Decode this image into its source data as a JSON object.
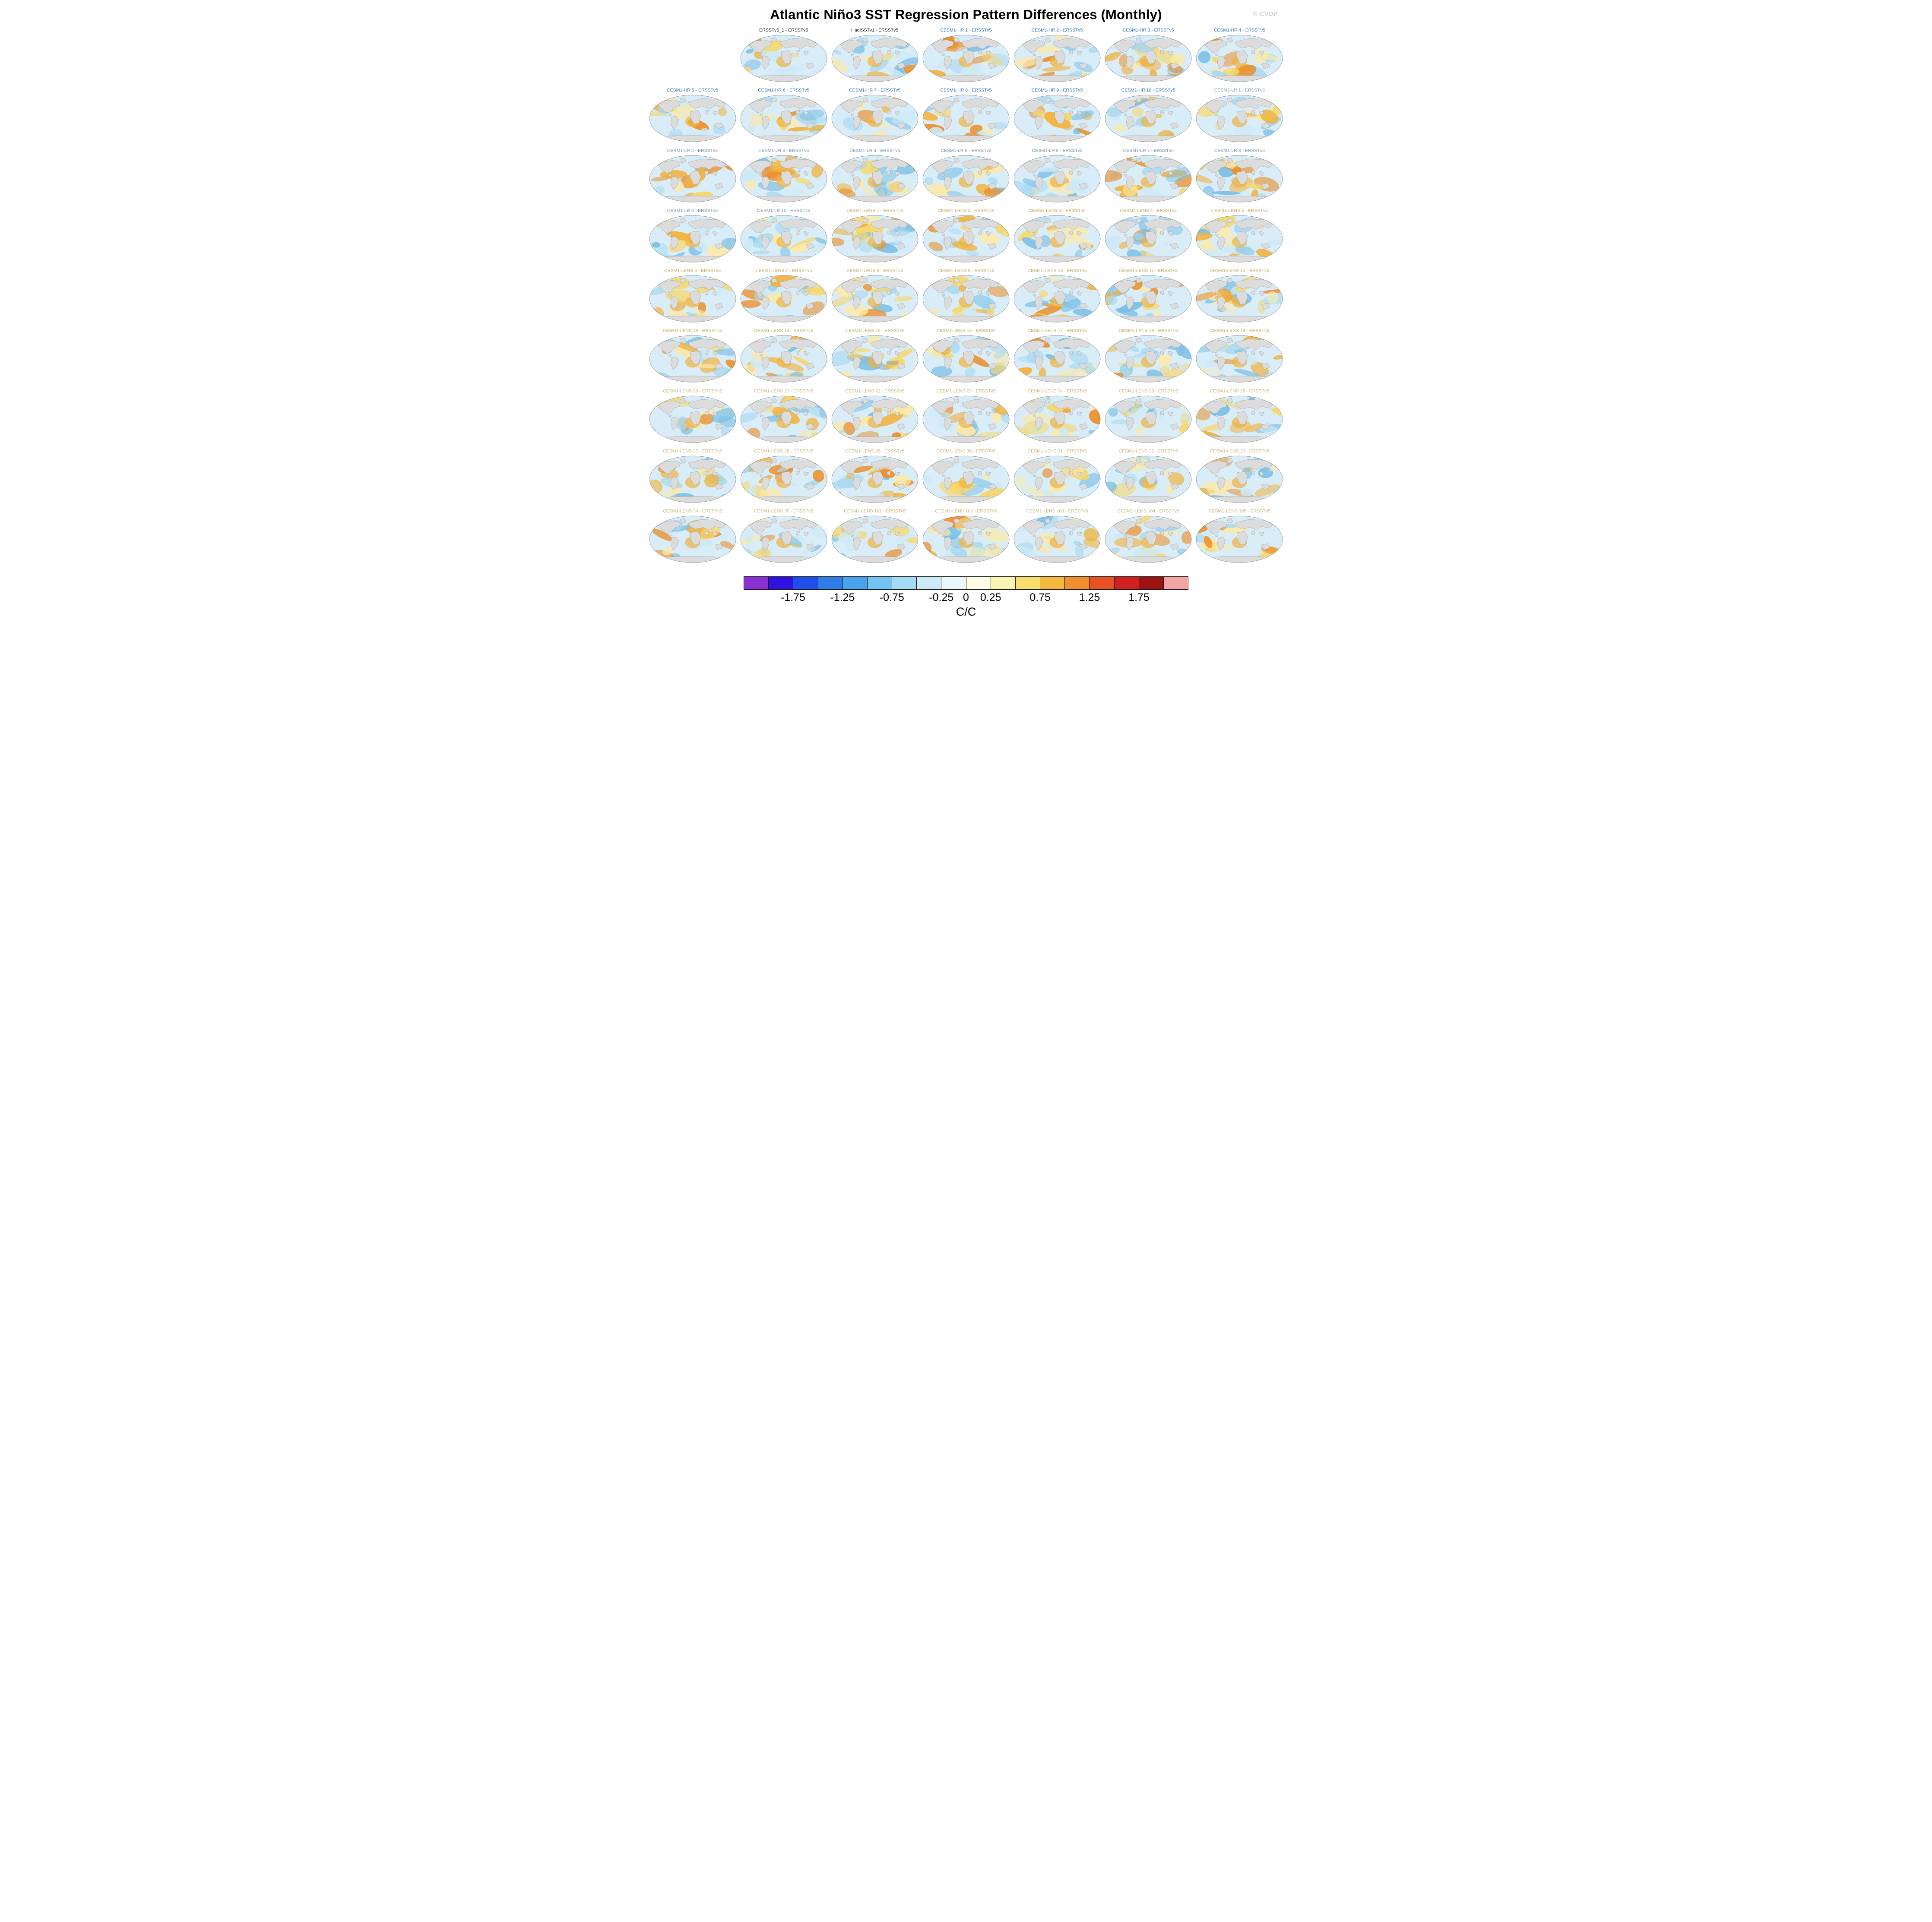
{
  "title": "Atlantic Niño3 SST Regression Pattern Differences (Monthly)",
  "watermark": "© CVDP",
  "group_colors": {
    "obs": "#000000",
    "hr": "#1c6bb0",
    "lr": "#7d97ac",
    "lens": "#c5ae6b"
  },
  "map_style": {
    "ocean": "#d8edf8",
    "land": "#dcdcdc",
    "land_outline": "#9a9a9a",
    "globe_outline": "#777777",
    "warm_palette": [
      "#fce9a8",
      "#f8d76a",
      "#f2b23c",
      "#ec8f2a"
    ],
    "cool_palette": [
      "#a9d8f0",
      "#7cc0e6",
      "#cde9f6"
    ]
  },
  "chart_data": {
    "type": "heatmap",
    "subtype": "global-map-grid",
    "title": "Atlantic Niño3 SST Regression Pattern Differences (Monthly)",
    "grid": {
      "rows": 9,
      "columns": 7,
      "leading_blank_cells": 1
    },
    "panels": [
      {
        "label": "ERSSTv5_1 - ERSSTv5",
        "group": "obs"
      },
      {
        "label": "HadISSTv1 - ERSSTv5",
        "group": "obs"
      },
      {
        "label": "CESM1-HR 1 - ERSSTv5",
        "group": "hr"
      },
      {
        "label": "CESM1-HR 2 - ERSSTv5",
        "group": "hr"
      },
      {
        "label": "CESM1-HR 3 - ERSSTv5",
        "group": "hr"
      },
      {
        "label": "CESM1-HR 4 - ERSSTv5",
        "group": "hr"
      },
      {
        "label": "CESM1-HR 5 - ERSSTv5",
        "group": "hr"
      },
      {
        "label": "CESM1-HR 6 - ERSSTv5",
        "group": "hr"
      },
      {
        "label": "CESM1-HR 7 - ERSSTv5",
        "group": "hr"
      },
      {
        "label": "CESM1-HR 8 - ERSSTv5",
        "group": "hr"
      },
      {
        "label": "CESM1-HR 9 - ERSSTv5",
        "group": "hr"
      },
      {
        "label": "CESM1-HR 10 - ERSSTv5",
        "group": "hr"
      },
      {
        "label": "CESM1-LR 1 - ERSSTv5",
        "group": "lr"
      },
      {
        "label": "CESM1-LR 2 - ERSSTv5",
        "group": "lr"
      },
      {
        "label": "CESM1-LR 3 - ERSSTv5",
        "group": "lr"
      },
      {
        "label": "CESM1-LR 4 - ERSSTv5",
        "group": "lr"
      },
      {
        "label": "CESM1-LR 5 - ERSSTv5",
        "group": "lr"
      },
      {
        "label": "CESM1-LR 6 - ERSSTv5",
        "group": "lr"
      },
      {
        "label": "CESM1-LR 7 - ERSSTv5",
        "group": "lr"
      },
      {
        "label": "CESM1-LR 8 - ERSSTv5",
        "group": "lr"
      },
      {
        "label": "CESM1-LR 9 - ERSSTv5",
        "group": "lr"
      },
      {
        "label": "CESM1-LR 10 - ERSSTv5",
        "group": "lr"
      },
      {
        "label": "CESM1-LENS 1 - ERSSTv5",
        "group": "lens"
      },
      {
        "label": "CESM1-LENS 2 - ERSSTv5",
        "group": "lens"
      },
      {
        "label": "CESM1-LENS 3 - ERSSTv5",
        "group": "lens"
      },
      {
        "label": "CESM1-LENS 4 - ERSSTv5",
        "group": "lens"
      },
      {
        "label": "CESM1-LENS 5 - ERSSTv5",
        "group": "lens"
      },
      {
        "label": "CESM1-LENS 6 - ERSSTv5",
        "group": "lens"
      },
      {
        "label": "CESM1-LENS 7 - ERSSTv5",
        "group": "lens"
      },
      {
        "label": "CESM1-LENS 8 - ERSSTv5",
        "group": "lens"
      },
      {
        "label": "CESM1-LENS 9 - ERSSTv5",
        "group": "lens"
      },
      {
        "label": "CESM1-LENS 10 - ERSSTv5",
        "group": "lens"
      },
      {
        "label": "CESM1-LENS 11 - ERSSTv5",
        "group": "lens"
      },
      {
        "label": "CESM1-LENS 12 - ERSSTv5",
        "group": "lens"
      },
      {
        "label": "CESM1-LENS 13 - ERSSTv5",
        "group": "lens"
      },
      {
        "label": "CESM1-LENS 14 - ERSSTv5",
        "group": "lens"
      },
      {
        "label": "CESM1-LENS 15 - ERSSTv5",
        "group": "lens"
      },
      {
        "label": "CESM1-LENS 16 - ERSSTv5",
        "group": "lens"
      },
      {
        "label": "CESM1-LENS 17 - ERSSTv5",
        "group": "lens"
      },
      {
        "label": "CESM1-LENS 18 - ERSSTv5",
        "group": "lens"
      },
      {
        "label": "CESM1-LENS 19 - ERSSTv5",
        "group": "lens"
      },
      {
        "label": "CESM1-LENS 20 - ERSSTv5",
        "group": "lens"
      },
      {
        "label": "CESM1-LENS 21 - ERSSTv5",
        "group": "lens"
      },
      {
        "label": "CESM1-LENS 22 - ERSSTv5",
        "group": "lens"
      },
      {
        "label": "CESM1-LENS 23 - ERSSTv5",
        "group": "lens"
      },
      {
        "label": "CESM1-LENS 24 - ERSSTv5",
        "group": "lens"
      },
      {
        "label": "CESM1-LENS 25 - ERSSTv5",
        "group": "lens"
      },
      {
        "label": "CESM1-LENS 26 - ERSSTv5",
        "group": "lens"
      },
      {
        "label": "CESM1-LENS 27 - ERSSTv5",
        "group": "lens"
      },
      {
        "label": "CESM1-LENS 28 - ERSSTv5",
        "group": "lens"
      },
      {
        "label": "CESM1-LENS 29 - ERSSTv5",
        "group": "lens"
      },
      {
        "label": "CESM1-LENS 30 - ERSSTv5",
        "group": "lens"
      },
      {
        "label": "CESM1-LENS 31 - ERSSTv5",
        "group": "lens"
      },
      {
        "label": "CESM1-LENS 32 - ERSSTv5",
        "group": "lens"
      },
      {
        "label": "CESM1-LENS 33 - ERSSTv5",
        "group": "lens"
      },
      {
        "label": "CESM1-LENS 34 - ERSSTv5",
        "group": "lens"
      },
      {
        "label": "CESM1-LENS 35 - ERSSTv5",
        "group": "lens"
      },
      {
        "label": "CESM1-LENS 101 - ERSSTv5",
        "group": "lens"
      },
      {
        "label": "CESM1-LENS 102 - ERSSTv5",
        "group": "lens"
      },
      {
        "label": "CESM1-LENS 103 - ERSSTv5",
        "group": "lens"
      },
      {
        "label": "CESM1-LENS 104 - ERSSTv5",
        "group": "lens"
      },
      {
        "label": "CESM1-LENS 105 - ERSSTv5",
        "group": "lens"
      }
    ],
    "colorbar": {
      "colors": [
        "#8a2fd1",
        "#3111e0",
        "#1f4fe8",
        "#2f7de8",
        "#4aa3ed",
        "#74c3f0",
        "#a5daf5",
        "#cdeaf8",
        "#ecf7fb",
        "#fdfce3",
        "#fbf3b4",
        "#f8df6d",
        "#f4b93c",
        "#ef8f2e",
        "#e85326",
        "#d01f20",
        "#9e1214",
        "#f4a6a6"
      ],
      "ticks": [
        "-1.75",
        "-1.25",
        "-0.75",
        "-0.25",
        "0",
        "0.25",
        "0.75",
        "1.25",
        "1.75"
      ],
      "tick_values": [
        -1.75,
        -1.25,
        -0.75,
        -0.25,
        0,
        0.25,
        0.75,
        1.25,
        1.75
      ],
      "range": [
        -2.25,
        2.25
      ],
      "units": "C/C"
    }
  }
}
